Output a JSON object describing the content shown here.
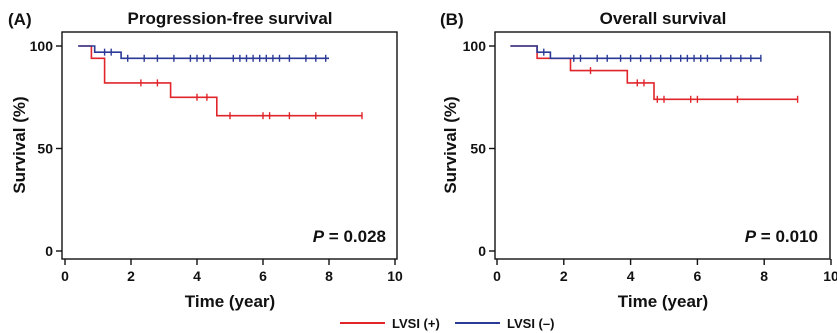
{
  "chart_data": [
    {
      "type": "line",
      "panel_label": "(A)",
      "title": "Progression-free survival",
      "xlabel": "Time (year)",
      "ylabel": "Survival (%)",
      "xlim": [
        0,
        10
      ],
      "ylim": [
        0,
        100
      ],
      "xticks": [
        "0",
        "2",
        "4",
        "6",
        "8",
        "10"
      ],
      "yticks": [
        "0",
        "50",
        "100"
      ],
      "annotation": {
        "prefix": "P",
        "value": " = 0.028"
      },
      "series": [
        {
          "name": "LVSI (+)",
          "color": "#e0252b",
          "steps": [
            [
              0.4,
              100
            ],
            [
              0.8,
              100
            ],
            [
              0.8,
              94
            ],
            [
              1.2,
              94
            ],
            [
              1.2,
              82
            ],
            [
              3.2,
              82
            ],
            [
              3.2,
              75
            ],
            [
              4.6,
              75
            ],
            [
              4.6,
              66
            ],
            [
              9.0,
              66
            ]
          ],
          "censors": [
            [
              2.3,
              82
            ],
            [
              2.8,
              82
            ],
            [
              4.0,
              75
            ],
            [
              4.3,
              75
            ],
            [
              5.0,
              66
            ],
            [
              6.0,
              66
            ],
            [
              6.2,
              66
            ],
            [
              6.8,
              66
            ],
            [
              7.6,
              66
            ],
            [
              9.0,
              66
            ]
          ]
        },
        {
          "name": "LVSI (–)",
          "color": "#2b3a96",
          "steps": [
            [
              0.4,
              100
            ],
            [
              0.9,
              100
            ],
            [
              0.9,
              97
            ],
            [
              1.7,
              97
            ],
            [
              1.7,
              94
            ],
            [
              8.0,
              94
            ]
          ],
          "censors": [
            [
              1.2,
              97
            ],
            [
              1.4,
              97
            ],
            [
              1.9,
              94
            ],
            [
              2.4,
              94
            ],
            [
              2.8,
              94
            ],
            [
              3.3,
              94
            ],
            [
              3.8,
              94
            ],
            [
              4.0,
              94
            ],
            [
              4.2,
              94
            ],
            [
              4.4,
              94
            ],
            [
              5.1,
              94
            ],
            [
              5.3,
              94
            ],
            [
              5.5,
              94
            ],
            [
              5.7,
              94
            ],
            [
              5.9,
              94
            ],
            [
              6.1,
              94
            ],
            [
              6.3,
              94
            ],
            [
              6.5,
              94
            ],
            [
              6.8,
              94
            ],
            [
              7.3,
              94
            ],
            [
              7.6,
              94
            ],
            [
              7.9,
              94
            ]
          ]
        }
      ]
    },
    {
      "type": "line",
      "panel_label": "(B)",
      "title": "Overall survival",
      "xlabel": "Time (year)",
      "ylabel": "Survival (%)",
      "xlim": [
        0,
        10
      ],
      "ylim": [
        0,
        100
      ],
      "xticks": [
        "0",
        "2",
        "4",
        "6",
        "8",
        "10"
      ],
      "yticks": [
        "0",
        "50",
        "100"
      ],
      "annotation": {
        "prefix": "P",
        "value": " = 0.010"
      },
      "series": [
        {
          "name": "LVSI (+)",
          "color": "#e0252b",
          "steps": [
            [
              0.4,
              100
            ],
            [
              1.2,
              100
            ],
            [
              1.2,
              94
            ],
            [
              2.2,
              94
            ],
            [
              2.2,
              88
            ],
            [
              3.9,
              88
            ],
            [
              3.9,
              82
            ],
            [
              4.7,
              82
            ],
            [
              4.7,
              74
            ],
            [
              9.0,
              74
            ]
          ],
          "censors": [
            [
              2.8,
              88
            ],
            [
              4.2,
              82
            ],
            [
              4.4,
              82
            ],
            [
              4.8,
              74
            ],
            [
              5.0,
              74
            ],
            [
              5.8,
              74
            ],
            [
              6.0,
              74
            ],
            [
              7.2,
              74
            ],
            [
              9.0,
              74
            ]
          ]
        },
        {
          "name": "LVSI (–)",
          "color": "#2b3a96",
          "steps": [
            [
              0.4,
              100
            ],
            [
              1.2,
              100
            ],
            [
              1.2,
              97
            ],
            [
              1.6,
              97
            ],
            [
              1.6,
              94
            ],
            [
              7.9,
              94
            ]
          ],
          "censors": [
            [
              1.4,
              97
            ],
            [
              2.3,
              94
            ],
            [
              2.5,
              94
            ],
            [
              3.0,
              94
            ],
            [
              3.3,
              94
            ],
            [
              3.7,
              94
            ],
            [
              4.0,
              94
            ],
            [
              4.3,
              94
            ],
            [
              4.6,
              94
            ],
            [
              4.9,
              94
            ],
            [
              5.2,
              94
            ],
            [
              5.5,
              94
            ],
            [
              5.7,
              94
            ],
            [
              5.9,
              94
            ],
            [
              6.1,
              94
            ],
            [
              6.3,
              94
            ],
            [
              6.7,
              94
            ],
            [
              7.0,
              94
            ],
            [
              7.3,
              94
            ],
            [
              7.6,
              94
            ],
            [
              7.9,
              94
            ]
          ]
        }
      ]
    }
  ],
  "legend": {
    "placement": "bottom-center",
    "items": [
      {
        "label": "LVSI (+)",
        "color": "#e0252b"
      },
      {
        "label": "LVSI (–)",
        "color": "#2b3a96"
      }
    ]
  }
}
